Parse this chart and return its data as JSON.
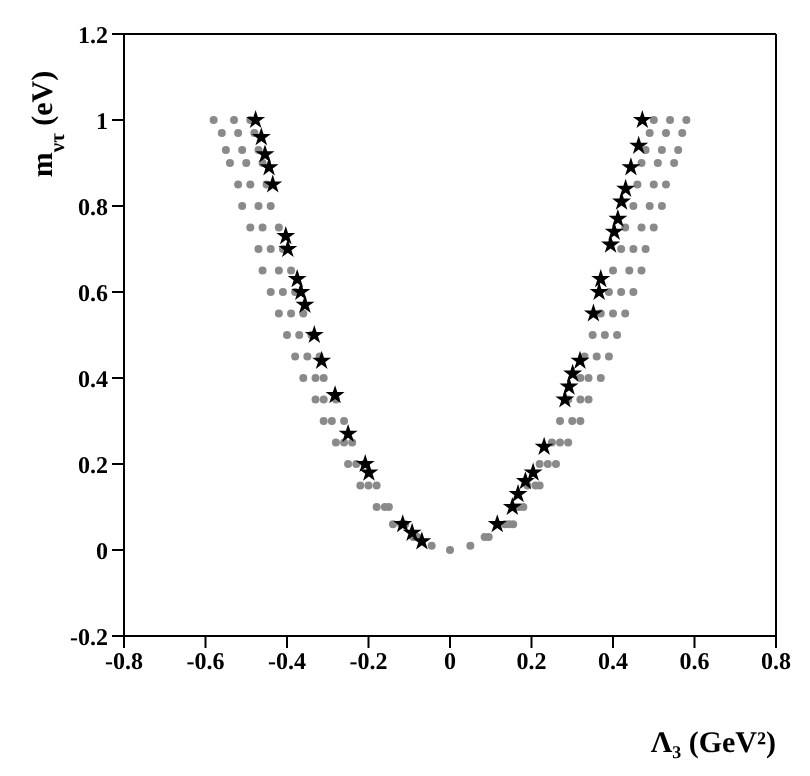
{
  "chart_data": {
    "type": "scatter",
    "xlabel": "Λ₃ (GeV²)",
    "ylabel": "m$_{ντ}$ (eV)",
    "xlim": [
      -0.8,
      0.8
    ],
    "xticks": [
      -0.8,
      -0.6,
      -0.4,
      -0.2,
      0,
      0.2,
      0.4,
      0.6,
      0.8
    ],
    "ylim": [
      -0.2,
      1.2
    ],
    "yticks": [
      -0.2,
      0,
      0.2,
      0.4,
      0.6,
      0.8,
      1,
      1.2
    ],
    "series": [
      {
        "color": "#8a8a8a",
        "marker": "circle",
        "x": [
          0.5,
          0.54,
          0.58,
          0.49,
          0.53,
          0.57,
          0.48,
          0.52,
          0.56,
          0.47,
          0.51,
          0.55,
          0.46,
          0.5,
          0.53,
          0.45,
          0.49,
          0.52,
          0.43,
          0.47,
          0.5,
          0.42,
          0.45,
          0.48,
          0.4,
          0.44,
          0.47,
          0.39,
          0.42,
          0.45,
          0.37,
          0.4,
          0.43,
          0.35,
          0.38,
          0.41,
          0.33,
          0.36,
          0.39,
          0.32,
          0.34,
          0.37,
          0.29,
          0.32,
          0.34,
          0.27,
          0.3,
          0.32,
          0.25,
          0.27,
          0.29,
          0.22,
          0.24,
          0.26,
          0.19,
          0.21,
          0.22,
          0.16,
          0.17,
          0.18,
          0.135,
          0.145,
          0.155,
          0.085,
          0.095,
          0.05,
          0,
          -0.49,
          -0.53,
          -0.58,
          -0.48,
          -0.52,
          -0.56,
          -0.47,
          -0.51,
          -0.55,
          -0.46,
          -0.5,
          -0.54,
          -0.45,
          -0.49,
          -0.52,
          -0.44,
          -0.47,
          -0.51,
          -0.42,
          -0.46,
          -0.49,
          -0.41,
          -0.44,
          -0.47,
          -0.39,
          -0.42,
          -0.46,
          -0.38,
          -0.41,
          -0.44,
          -0.36,
          -0.39,
          -0.42,
          -0.34,
          -0.37,
          -0.4,
          -0.32,
          -0.35,
          -0.38,
          -0.31,
          -0.33,
          -0.36,
          -0.28,
          -0.31,
          -0.33,
          -0.26,
          -0.29,
          -0.31,
          -0.24,
          -0.26,
          -0.28,
          -0.21,
          -0.23,
          -0.25,
          -0.18,
          -0.2,
          -0.22,
          -0.15,
          -0.16,
          -0.18,
          -0.11,
          -0.12,
          -0.14,
          -0.08,
          -0.09,
          -0.045
        ],
        "values": [
          1,
          1,
          1,
          0.97,
          0.97,
          0.97,
          0.93,
          0.93,
          0.93,
          0.9,
          0.9,
          0.9,
          0.85,
          0.85,
          0.85,
          0.8,
          0.8,
          0.8,
          0.75,
          0.75,
          0.75,
          0.7,
          0.7,
          0.7,
          0.65,
          0.65,
          0.65,
          0.6,
          0.6,
          0.6,
          0.55,
          0.55,
          0.55,
          0.5,
          0.5,
          0.5,
          0.45,
          0.45,
          0.45,
          0.4,
          0.4,
          0.4,
          0.35,
          0.35,
          0.35,
          0.3,
          0.3,
          0.3,
          0.25,
          0.25,
          0.25,
          0.2,
          0.2,
          0.2,
          0.15,
          0.15,
          0.15,
          0.1,
          0.1,
          0.1,
          0.06,
          0.06,
          0.06,
          0.03,
          0.03,
          0.01,
          0,
          1,
          1,
          1,
          0.97,
          0.97,
          0.97,
          0.93,
          0.93,
          0.93,
          0.9,
          0.9,
          0.9,
          0.85,
          0.85,
          0.85,
          0.8,
          0.8,
          0.8,
          0.75,
          0.75,
          0.75,
          0.7,
          0.7,
          0.7,
          0.65,
          0.65,
          0.65,
          0.6,
          0.6,
          0.6,
          0.55,
          0.55,
          0.55,
          0.5,
          0.5,
          0.5,
          0.45,
          0.45,
          0.45,
          0.4,
          0.4,
          0.4,
          0.35,
          0.35,
          0.35,
          0.3,
          0.3,
          0.3,
          0.25,
          0.25,
          0.25,
          0.2,
          0.2,
          0.2,
          0.15,
          0.15,
          0.15,
          0.1,
          0.1,
          0.1,
          0.06,
          0.06,
          0.06,
          0.03,
          0.03,
          0.01
        ]
      },
      {
        "color": "#000000",
        "marker": "star",
        "x": [
          -0.477,
          -0.463,
          -0.454,
          -0.444,
          -0.435,
          -0.403,
          -0.398,
          -0.375,
          -0.366,
          -0.356,
          -0.333,
          -0.315,
          -0.282,
          -0.25,
          -0.208,
          -0.199,
          -0.116,
          -0.093,
          -0.069,
          0.116,
          0.153,
          0.167,
          0.185,
          0.204,
          0.231,
          0.282,
          0.292,
          0.301,
          0.319,
          0.352,
          0.366,
          0.37,
          0.394,
          0.403,
          0.412,
          0.421,
          0.431,
          0.444,
          0.463,
          0.472
        ],
        "values": [
          1,
          0.96,
          0.92,
          0.89,
          0.85,
          0.73,
          0.7,
          0.63,
          0.6,
          0.57,
          0.5,
          0.44,
          0.36,
          0.27,
          0.2,
          0.18,
          0.06,
          0.04,
          0.02,
          0.06,
          0.1,
          0.13,
          0.16,
          0.18,
          0.24,
          0.35,
          0.38,
          0.41,
          0.44,
          0.55,
          0.6,
          0.63,
          0.71,
          0.74,
          0.77,
          0.81,
          0.84,
          0.89,
          0.94,
          1
        ]
      }
    ]
  }
}
